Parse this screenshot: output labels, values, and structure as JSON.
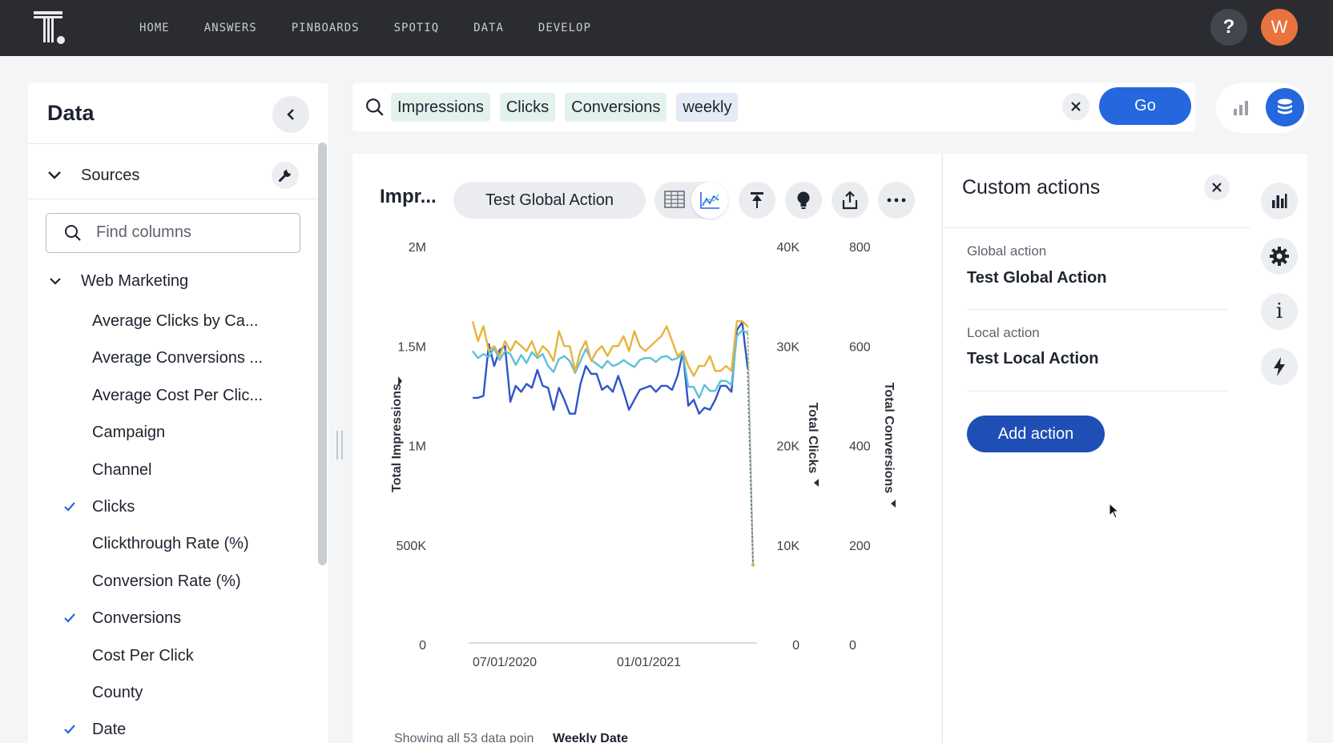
{
  "nav": {
    "links": [
      "HOME",
      "ANSWERS",
      "PINBOARDS",
      "SPOTIQ",
      "DATA",
      "DEVELOP"
    ],
    "help_label": "?",
    "avatar_initial": "W"
  },
  "data_panel": {
    "title": "Data",
    "sources_label": "Sources",
    "find_placeholder": "Find columns",
    "group_label": "Web Marketing",
    "columns": [
      {
        "label": "Average Clicks by Ca...",
        "checked": false
      },
      {
        "label": "Average Conversions ...",
        "checked": false
      },
      {
        "label": "Average Cost Per Clic...",
        "checked": false
      },
      {
        "label": "Campaign",
        "checked": false
      },
      {
        "label": "Channel",
        "checked": false
      },
      {
        "label": "Clicks",
        "checked": true
      },
      {
        "label": "Clickthrough Rate (%)",
        "checked": false
      },
      {
        "label": "Conversion Rate (%)",
        "checked": false
      },
      {
        "label": "Conversions",
        "checked": true
      },
      {
        "label": "Cost Per Click",
        "checked": false
      },
      {
        "label": "County",
        "checked": false
      },
      {
        "label": "Date",
        "checked": true
      }
    ]
  },
  "search": {
    "tokens": [
      {
        "text": "Impressions",
        "kind": "green"
      },
      {
        "text": "Clicks",
        "kind": "green"
      },
      {
        "text": "Conversions",
        "kind": "green"
      },
      {
        "text": "weekly",
        "kind": "blue"
      }
    ],
    "go_label": "Go"
  },
  "chart_panel": {
    "title": "Impr...",
    "action_pill": "Test Global Action",
    "footer_text": "Showing all 53 data poin",
    "footer_sort": "Weekly Date"
  },
  "chart_data": {
    "type": "line",
    "x_ticks": [
      "07/01/2020",
      "01/01/2021"
    ],
    "axes": [
      {
        "label": "Total Impressions",
        "ticks": [
          "0",
          "500K",
          "1M",
          "1.5M",
          "2M"
        ],
        "ylim": [
          0,
          2000000
        ]
      },
      {
        "label": "Total Clicks",
        "ticks": [
          "0",
          "10K",
          "20K",
          "30K",
          "40K"
        ],
        "ylim": [
          0,
          40000
        ]
      },
      {
        "label": "Total Conversions",
        "ticks": [
          "0",
          "200",
          "400",
          "600",
          "800"
        ],
        "ylim": [
          0,
          800
        ]
      }
    ],
    "series": [
      {
        "axis": 0,
        "color": "#2f55c8",
        "values": [
          1240000,
          1240000,
          1250000,
          1510000,
          1400000,
          1480000,
          1500000,
          1220000,
          1300000,
          1270000,
          1310000,
          1290000,
          1380000,
          1300000,
          1290000,
          1180000,
          1290000,
          1230000,
          1160000,
          1160000,
          1310000,
          1400000,
          1360000,
          1360000,
          1280000,
          1300000,
          1270000,
          1350000,
          1270000,
          1180000,
          1230000,
          1280000,
          1290000,
          1300000,
          1270000,
          1300000,
          1300000,
          1280000,
          1350000,
          1470000,
          1200000,
          1230000,
          1160000,
          1190000,
          1180000,
          1230000,
          1300000,
          1300000,
          1270000,
          1580000,
          1620000,
          1390000,
          400000
        ]
      },
      {
        "axis": 1,
        "color": "#5cc1d8",
        "values": [
          29500,
          28800,
          29200,
          28900,
          29800,
          28600,
          29500,
          29200,
          28100,
          29100,
          28300,
          29400,
          28800,
          29200,
          28000,
          27400,
          28700,
          29000,
          28500,
          27300,
          28500,
          29700,
          28600,
          28200,
          27800,
          28500,
          28000,
          28200,
          28600,
          28200,
          27900,
          28600,
          28800,
          28800,
          28400,
          28900,
          29000,
          28600,
          28800,
          29200,
          25900,
          25900,
          24800,
          26100,
          25500,
          25500,
          26500,
          26500,
          26100,
          31000,
          31600,
          31300,
          8000
        ]
      },
      {
        "axis": 2,
        "color": "#e8b33c",
        "values": [
          650,
          610,
          640,
          590,
          600,
          580,
          610,
          590,
          610,
          600,
          590,
          610,
          580,
          600,
          590,
          570,
          630,
          600,
          600,
          550,
          590,
          610,
          570,
          590,
          600,
          580,
          600,
          600,
          620,
          590,
          630,
          600,
          590,
          600,
          610,
          620,
          640,
          610,
          580,
          590,
          560,
          540,
          560,
          560,
          580,
          550,
          550,
          560,
          550,
          650,
          650,
          640,
          160
        ]
      }
    ]
  },
  "custom_actions": {
    "title": "Custom actions",
    "global_label": "Global action",
    "global_value": "Test Global Action",
    "local_label": "Local action",
    "local_value": "Test Local Action",
    "add_label": "Add action"
  },
  "rail": {
    "info_label": "i"
  }
}
